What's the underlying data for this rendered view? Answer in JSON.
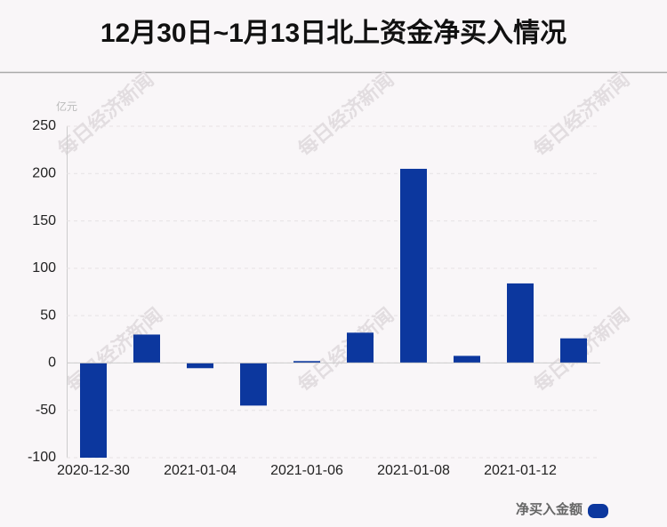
{
  "chart_data": {
    "type": "bar",
    "title": "12月30日~1月13日北上资金净买入情况",
    "unit": "亿元",
    "watermark": "每日经济新闻",
    "categories": [
      "2020-12-30",
      null,
      "2021-01-04",
      null,
      "2021-01-06",
      null,
      "2021-01-08",
      null,
      "2021-01-12",
      null
    ],
    "series": [
      {
        "name": "净买入金额",
        "color": "#0c379e",
        "values": [
          -100,
          30,
          -5.5,
          -45,
          2,
          32,
          205,
          7.5,
          84,
          26
        ]
      }
    ],
    "ylim": [
      -100,
      250
    ],
    "yticks": [
      -100,
      -50,
      0,
      50,
      100,
      150,
      200,
      250
    ],
    "grid": true
  }
}
